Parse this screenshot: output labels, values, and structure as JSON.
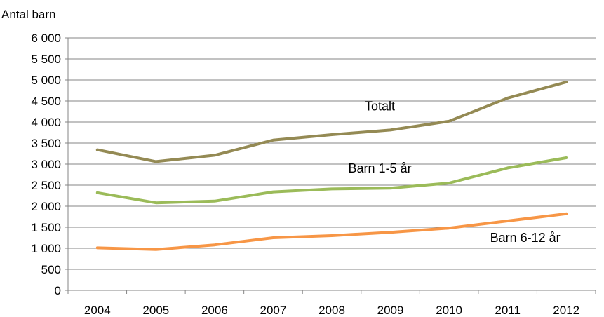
{
  "chart_data": {
    "type": "line",
    "title": "",
    "xlabel": "",
    "ylabel": "Antal barn",
    "ylim": [
      0,
      6000
    ],
    "grid": true,
    "x": [
      "2004",
      "2005",
      "2006",
      "2007",
      "2008",
      "2009",
      "2010",
      "2011",
      "2012"
    ],
    "y_ticks": [
      "0",
      "500",
      "1 000",
      "1 500",
      "2 000",
      "2 500",
      "3 000",
      "3 500",
      "4 000",
      "4 500",
      "5 000",
      "5 500",
      "6 000"
    ],
    "series": [
      {
        "name": "Totalt",
        "color": "#948a54",
        "values": [
          3340,
          3060,
          3210,
          3570,
          3700,
          3810,
          4020,
          4570,
          4950
        ]
      },
      {
        "name": "Barn 1-5 år",
        "color": "#9bbb59",
        "values": [
          2320,
          2080,
          2120,
          2340,
          2410,
          2430,
          2550,
          2910,
          3150
        ]
      },
      {
        "name": "Barn 6-12 år",
        "color": "#f79646",
        "values": [
          1010,
          970,
          1080,
          1250,
          1300,
          1380,
          1480,
          1650,
          1820
        ]
      }
    ]
  }
}
